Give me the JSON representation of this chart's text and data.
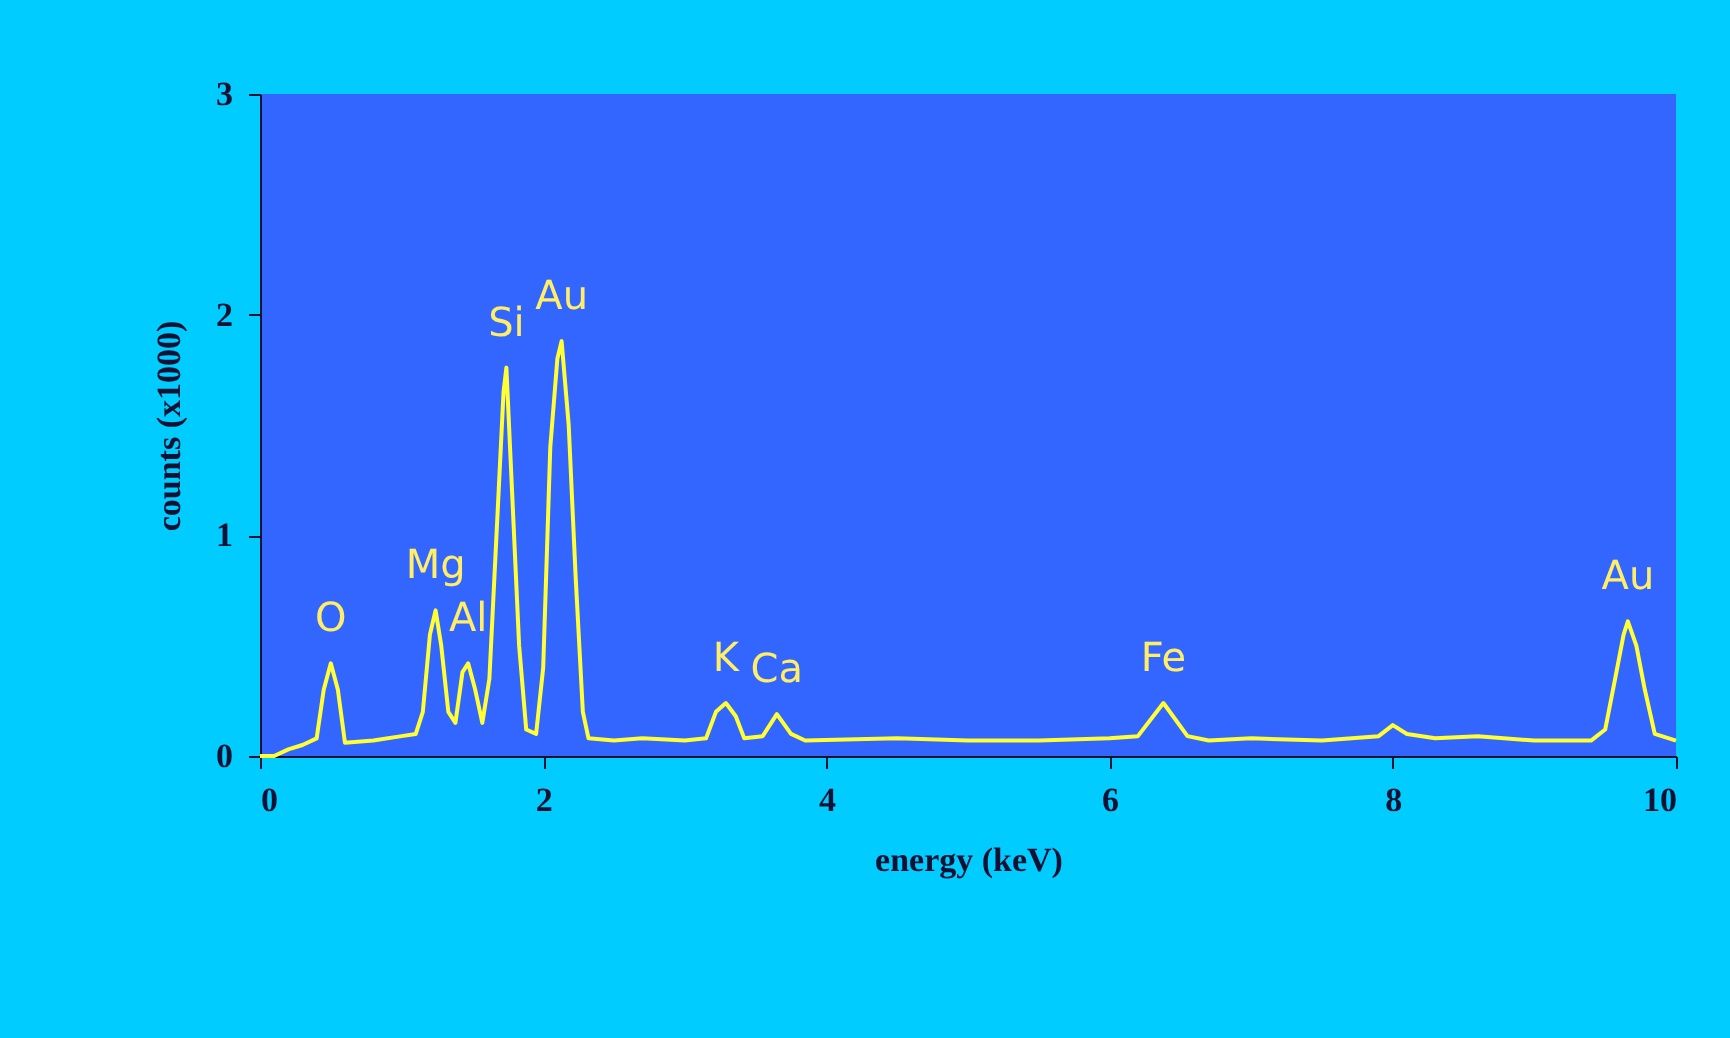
{
  "chart_data": {
    "type": "line",
    "xlabel": "energy (keV)",
    "ylabel": "counts (x1000)",
    "xlim": [
      0,
      10
    ],
    "xticks": [
      0,
      2,
      4,
      6,
      8,
      10
    ],
    "ylim": [
      0,
      3
    ],
    "yticks": [
      0,
      1,
      2,
      3
    ],
    "grid": false,
    "marker": "none",
    "line_style": "solid",
    "series": [
      {
        "color": "#ffff33",
        "x": [
          0.0,
          0.1,
          0.2,
          0.3,
          0.4,
          0.45,
          0.5,
          0.55,
          0.6,
          0.8,
          1.0,
          1.1,
          1.15,
          1.2,
          1.24,
          1.28,
          1.33,
          1.38,
          1.43,
          1.47,
          1.52,
          1.57,
          1.62,
          1.67,
          1.72,
          1.74,
          1.78,
          1.83,
          1.88,
          1.95,
          2.0,
          2.05,
          2.1,
          2.13,
          2.18,
          2.23,
          2.28,
          2.32,
          2.5,
          2.7,
          3.0,
          3.15,
          3.22,
          3.29,
          3.36,
          3.42,
          3.55,
          3.65,
          3.75,
          3.85,
          4.5,
          5.0,
          5.5,
          6.0,
          6.2,
          6.38,
          6.55,
          6.7,
          7.0,
          7.5,
          7.9,
          8.0,
          8.1,
          8.3,
          8.6,
          9.0,
          9.4,
          9.5,
          9.57,
          9.63,
          9.66,
          9.72,
          9.78,
          9.85,
          10.0
        ],
        "values": [
          0.0,
          0.0,
          0.03,
          0.05,
          0.08,
          0.3,
          0.42,
          0.3,
          0.06,
          0.07,
          0.09,
          0.1,
          0.2,
          0.55,
          0.66,
          0.5,
          0.2,
          0.15,
          0.38,
          0.42,
          0.3,
          0.15,
          0.35,
          1.0,
          1.65,
          1.76,
          1.2,
          0.5,
          0.12,
          0.1,
          0.4,
          1.4,
          1.8,
          1.88,
          1.5,
          0.8,
          0.2,
          0.08,
          0.07,
          0.08,
          0.07,
          0.08,
          0.2,
          0.24,
          0.18,
          0.08,
          0.09,
          0.19,
          0.1,
          0.07,
          0.08,
          0.07,
          0.07,
          0.08,
          0.09,
          0.24,
          0.09,
          0.07,
          0.08,
          0.07,
          0.09,
          0.14,
          0.1,
          0.08,
          0.09,
          0.07,
          0.07,
          0.12,
          0.35,
          0.55,
          0.61,
          0.5,
          0.3,
          0.1,
          0.07
        ]
      }
    ],
    "annotations": [
      {
        "text": "O",
        "x": 0.5,
        "y": 0.42
      },
      {
        "text": "Mg",
        "x": 1.24,
        "y": 0.66
      },
      {
        "text": "Al",
        "x": 1.47,
        "y": 0.42
      },
      {
        "text": "Si",
        "x": 1.74,
        "y": 1.76
      },
      {
        "text": "Au",
        "x": 2.13,
        "y": 1.88
      },
      {
        "text": "K",
        "x": 3.29,
        "y": 0.24
      },
      {
        "text": "Ca",
        "x": 3.65,
        "y": 0.19
      },
      {
        "text": "Fe",
        "x": 6.38,
        "y": 0.24
      },
      {
        "text": "Au",
        "x": 9.66,
        "y": 0.61
      }
    ]
  }
}
